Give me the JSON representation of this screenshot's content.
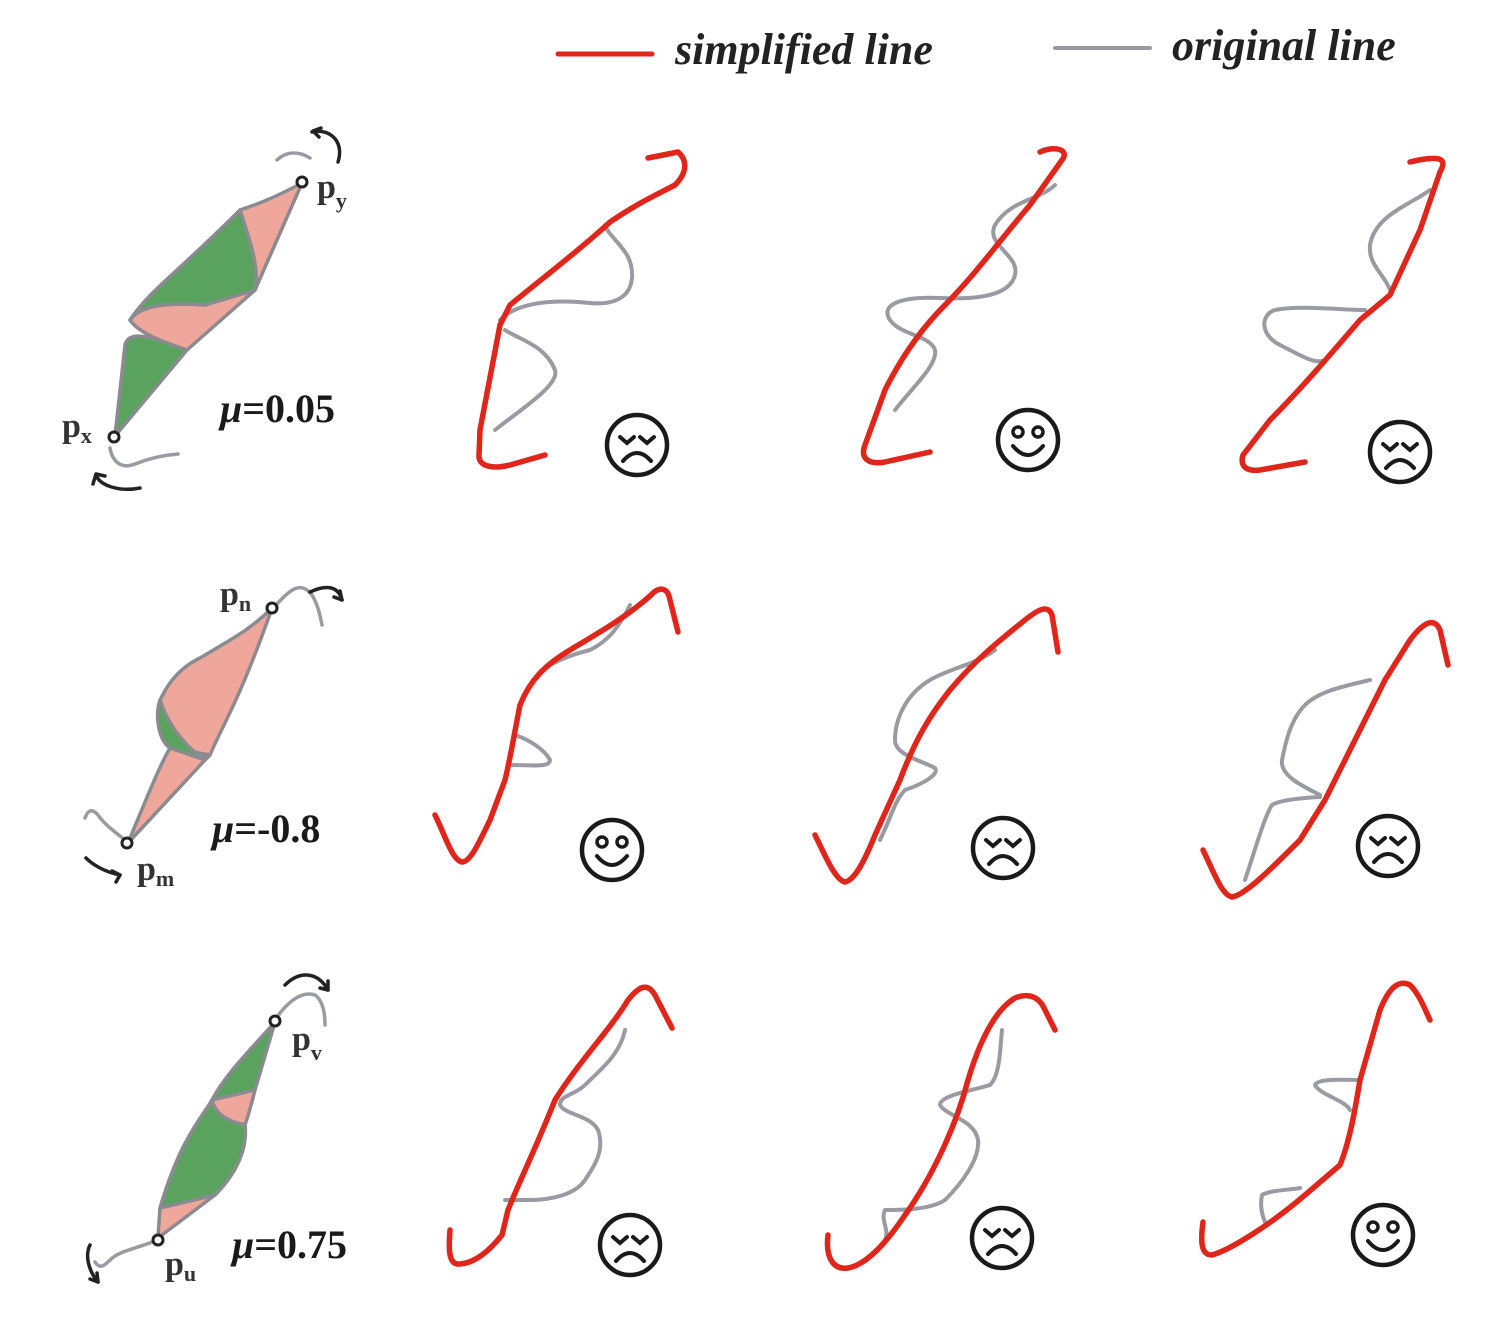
{
  "legend": {
    "simplified_label": "simplified line",
    "original_label": "original line",
    "simplified_color": "#e0251b",
    "original_color": "#9a9aa2"
  },
  "rows": [
    {
      "mu_symbol": "μ",
      "mu_value": "=0.05",
      "start_point": {
        "base": "p",
        "sub": "x"
      },
      "end_point": {
        "base": "p",
        "sub": "y"
      },
      "panels": [
        {
          "face": "sad-face-icon"
        },
        {
          "face": "happy-face-icon"
        },
        {
          "face": "sad-face-icon"
        }
      ]
    },
    {
      "mu_symbol": "μ",
      "mu_value": "=-0.8",
      "start_point": {
        "base": "p",
        "sub": "m"
      },
      "end_point": {
        "base": "p",
        "sub": "n"
      },
      "panels": [
        {
          "face": "happy-face-icon"
        },
        {
          "face": "sad-face-icon"
        },
        {
          "face": "sad-face-icon"
        }
      ]
    },
    {
      "mu_symbol": "μ",
      "mu_value": "=0.75",
      "start_point": {
        "base": "p",
        "sub": "u"
      },
      "end_point": {
        "base": "p",
        "sub": "v"
      },
      "panels": [
        {
          "face": "sad-face-icon"
        },
        {
          "face": "sad-face-icon"
        },
        {
          "face": "happy-face-icon"
        }
      ]
    }
  ]
}
